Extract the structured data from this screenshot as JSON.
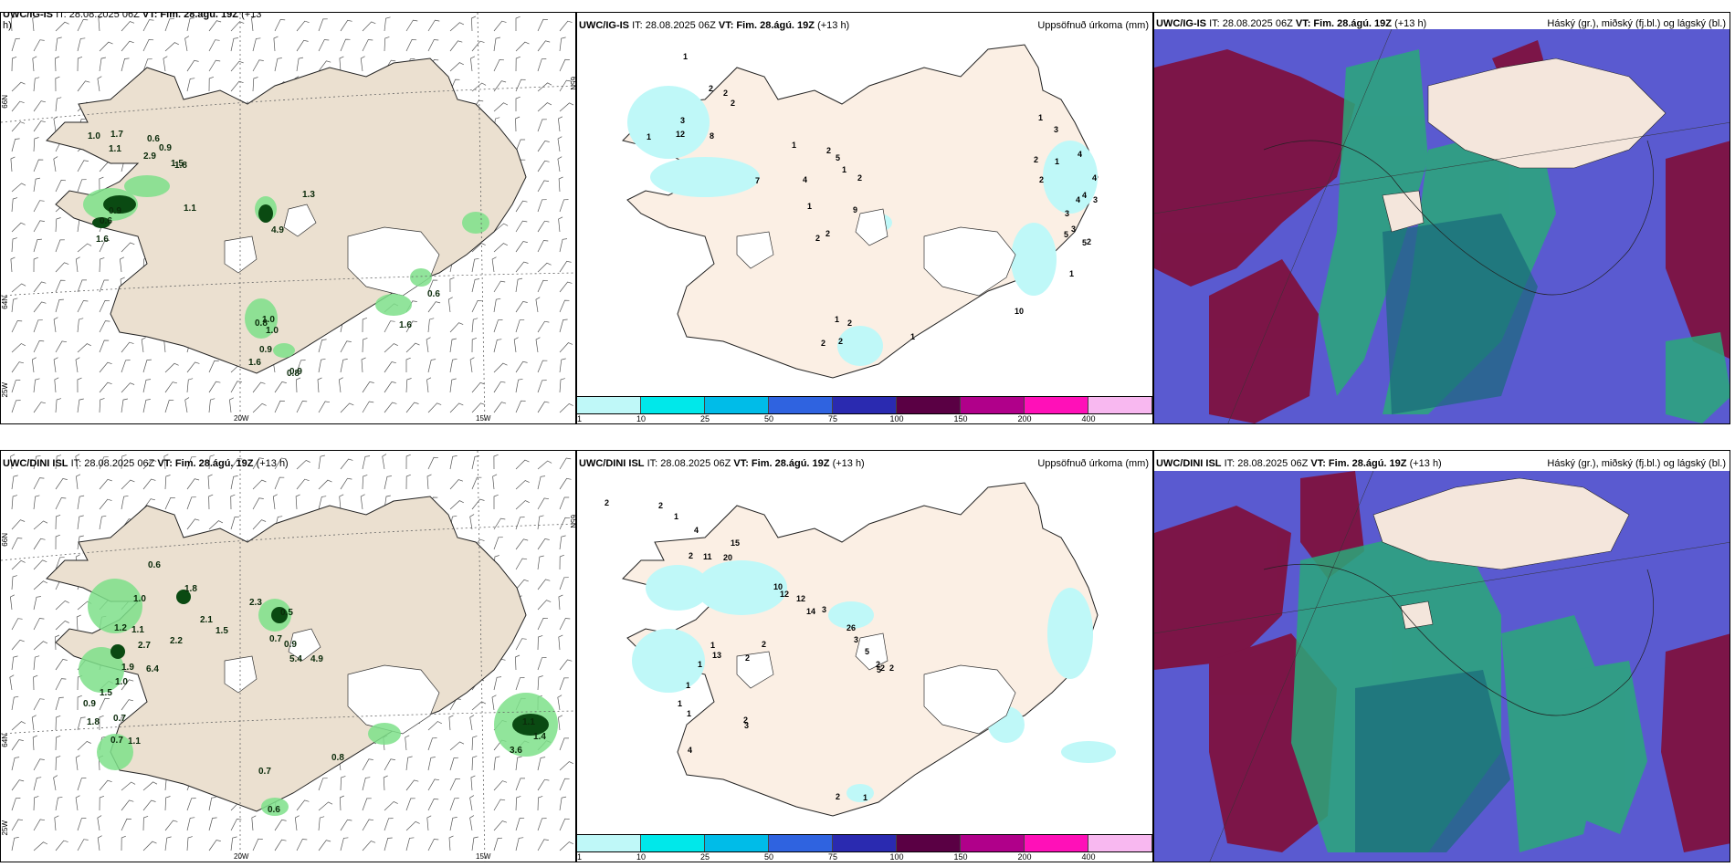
{
  "panels": {
    "top_left": {
      "header_model": "UWC/IG-IS",
      "header_it": "IT: 28.08.2025 06Z",
      "header_vt_label": "VT: Fim. 28.ágú. 19Z",
      "header_lead": "(+13",
      "header_wrap": "h)",
      "lon_labels": [
        "20W",
        "15W"
      ],
      "lat_labels": [
        "66N",
        "64N",
        "25W",
        "65N"
      ],
      "values": [
        "1.0",
        "1.7",
        "1.1",
        "0.6",
        "0.9",
        "2.9",
        "1.8",
        "1.5",
        "1.3",
        "0.9",
        "0.6",
        "1.6",
        "1.1",
        "4.9",
        "1.0",
        "0.8",
        "0.9",
        "1.6",
        "0.8",
        "1.0",
        "0.6",
        "1.6",
        "0.9"
      ]
    },
    "top_mid": {
      "header_model": "UWC/IG-IS",
      "header_it": "IT: 28.08.2025 06Z",
      "header_vt_label": "VT: Fim. 28.ágú. 19Z",
      "header_lead": "(+13 h)",
      "header_right": "Uppsöfnuð úrkoma (mm)",
      "values": [
        "1",
        "2",
        "2",
        "2",
        "3",
        "12",
        "8",
        "1",
        "1",
        "5",
        "7",
        "4",
        "2",
        "1",
        "2",
        "1",
        "9",
        "2",
        "2",
        "1",
        "2",
        "2",
        "2",
        "1",
        "1",
        "2",
        "2",
        "3",
        "1",
        "4",
        "4",
        "4",
        "3",
        "5",
        "3",
        "5",
        "2",
        "1",
        "4",
        "3",
        "10"
      ],
      "colorbar": {
        "labels": [
          "1",
          "10",
          "25",
          "50",
          "75",
          "100",
          "150",
          "200",
          "400"
        ],
        "colors": [
          "#bff8f8",
          "#00e8ea",
          "#00bce8",
          "#2f63e0",
          "#2a2ab0",
          "#5a0044",
          "#b0008a",
          "#ff10b8",
          "#f8b8f0"
        ]
      }
    },
    "top_right": {
      "header_model": "UWC/IG-IS",
      "header_it": "IT: 28.08.2025 06Z",
      "header_vt_label": "VT: Fim. 28.ágú. 19Z",
      "header_lead": "(+13 h)",
      "header_right": "Háský (gr.), miðský (fj.bl.) og lágský (bl.)"
    },
    "bottom_left": {
      "header_model": "UWC/DINI ISL",
      "header_it": "IT: 28.08.2025 06Z",
      "header_vt_label": "VT: Fim. 28.ágú. 19Z",
      "header_lead": "(+13 h)",
      "lon_labels": [
        "20W",
        "15W"
      ],
      "lat_labels": [
        "66N",
        "64N",
        "25W",
        "65N"
      ],
      "values": [
        "0.6",
        "1.8",
        "1.0",
        "2.3",
        "0.5",
        "1.2",
        "1.1",
        "2.1",
        "1.5",
        "0.7",
        "0.9",
        "2.7",
        "2.2",
        "5.4",
        "4.9",
        "1.9",
        "6.4",
        "1.0",
        "1.5",
        "0.9",
        "1.8",
        "0.7",
        "0.7",
        "1.1",
        "0.8",
        "0.7",
        "0.6",
        "1.1",
        "1.4",
        "3.6"
      ]
    },
    "bottom_mid": {
      "header_model": "UWC/DINI ISL",
      "header_it": "IT: 28.08.2025 06Z",
      "header_vt_label": "VT: Fim. 28.ágú. 19Z",
      "header_lead": "(+13 h)",
      "header_right": "Uppsöfnuð úrkoma (mm)",
      "values": [
        "2",
        "2",
        "1",
        "4",
        "2",
        "15",
        "11",
        "20",
        "12",
        "10",
        "12",
        "14",
        "3",
        "26",
        "3",
        "5",
        "2",
        "2",
        "5",
        "2",
        "13",
        "2",
        "1",
        "1",
        "2",
        "1",
        "1",
        "1",
        "2",
        "3",
        "4",
        "1",
        "2"
      ],
      "colorbar": {
        "labels": [
          "1",
          "10",
          "25",
          "50",
          "75",
          "100",
          "150",
          "200",
          "400"
        ],
        "colors": [
          "#bff8f8",
          "#00e8ea",
          "#00bce8",
          "#2f63e0",
          "#2a2ab0",
          "#5a0044",
          "#b0008a",
          "#ff10b8",
          "#f8b8f0"
        ]
      }
    },
    "bottom_right": {
      "header_model": "UWC/DINI ISL",
      "header_it": "IT: 28.08.2025 06Z",
      "header_vt_label": "VT: Fim. 28.ágú. 19Z",
      "header_lead": "(+13 h)",
      "header_right": "Háský (gr.), miðský (fj.bl.) og lágský (bl.)"
    }
  },
  "colors": {
    "land": "#ebe0d0",
    "land_mid": "#fbefe4",
    "precip_green": "#7ee08a",
    "precip_dark": "#0a4a12",
    "cloud_bg": "#5a5ad0",
    "cloud_high": "#7e1240",
    "cloud_mid": "#2aa87a"
  }
}
